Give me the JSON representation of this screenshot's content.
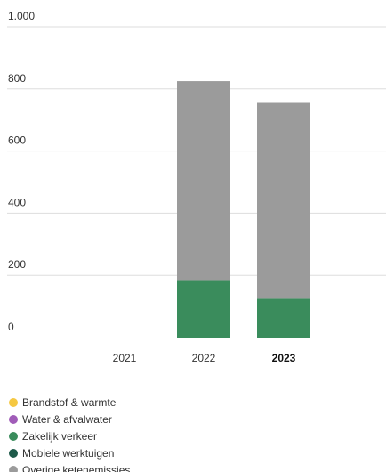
{
  "chart_data": {
    "type": "bar",
    "stacked": true,
    "categories": [
      "2021",
      "2022",
      "2023"
    ],
    "emphasized_category": "2023",
    "y_ticks": [
      0,
      200,
      400,
      600,
      800,
      1000
    ],
    "y_tick_labels": [
      "0",
      "200",
      "400",
      "600",
      "800",
      "1.000"
    ],
    "ylim": [
      0,
      1000
    ],
    "grid": true,
    "legend_placement": "bottom-left",
    "series": [
      {
        "name": "Brandstof & warmte",
        "color": "#f5c842",
        "values": [
          0,
          0,
          0
        ]
      },
      {
        "name": "Water & afvalwater",
        "color": "#a05cb8",
        "values": [
          0,
          0,
          0
        ]
      },
      {
        "name": "Zakelijk verkeer",
        "color": "#3a8c5c",
        "values": [
          0,
          185,
          125
        ]
      },
      {
        "name": "Mobiele werktuigen",
        "color": "#1e5a4a",
        "values": [
          0,
          0,
          0
        ]
      },
      {
        "name": "Overige ketenemissies",
        "color": "#9b9b9b",
        "values": [
          0,
          640,
          630
        ]
      }
    ]
  }
}
